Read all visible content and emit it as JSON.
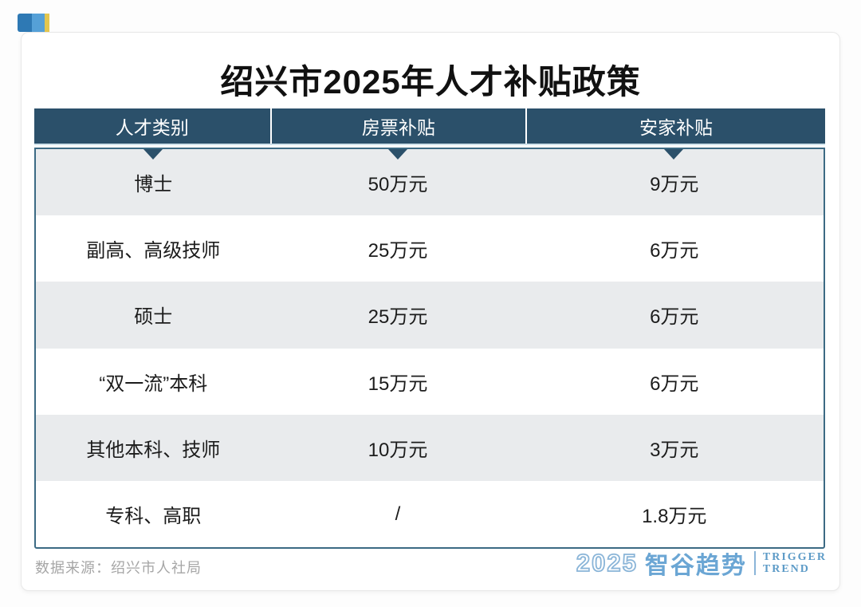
{
  "title": "绍兴市2025年人才补贴政策",
  "source": "数据来源：绍兴市人社局",
  "table": {
    "columns": [
      "人才类别",
      "房票补贴",
      "安家补贴"
    ],
    "rows": [
      [
        "博士",
        "50万元",
        "9万元"
      ],
      [
        "副高、高级技师",
        "25万元",
        "6万元"
      ],
      [
        "硕士",
        "25万元",
        "6万元"
      ],
      [
        "“双一流”本科",
        "15万元",
        "6万元"
      ],
      [
        "其他本科、技师",
        "10万元",
        "3万元"
      ],
      [
        "专科、高职",
        "/",
        "1.8万元"
      ]
    ]
  },
  "logo": {
    "year": "2025",
    "brand": "智谷趋势",
    "tagline_line1": "TRIGGER",
    "tagline_line2": "TREND"
  },
  "colors": {
    "header_bg": "#2b506a",
    "row_alt": "#e9ebed",
    "accent_blue": "#6ba6d4",
    "deco_blue_dark": "#2e79b4",
    "deco_blue_light": "#55a0d7",
    "deco_yellow": "#e3c64f"
  },
  "chart_data": {
    "type": "table",
    "title": "绍兴市2025年人才补贴政策",
    "columns": [
      "人才类别",
      "房票补贴",
      "安家补贴"
    ],
    "rows": [
      {
        "人才类别": "博士",
        "房票补贴": "50万元",
        "安家补贴": "9万元"
      },
      {
        "人才类别": "副高、高级技师",
        "房票补贴": "25万元",
        "安家补贴": "6万元"
      },
      {
        "人才类别": "硕士",
        "房票补贴": "25万元",
        "安家补贴": "6万元"
      },
      {
        "人才类别": "“双一流”本科",
        "房票补贴": "15万元",
        "安家补贴": "6万元"
      },
      {
        "人才类别": "其他本科、技师",
        "房票补贴": "10万元",
        "安家补贴": "3万元"
      },
      {
        "人才类别": "专科、高职",
        "房票补贴": "/",
        "安家补贴": "1.8万元"
      }
    ],
    "source": "数据来源：绍兴市人社局"
  }
}
